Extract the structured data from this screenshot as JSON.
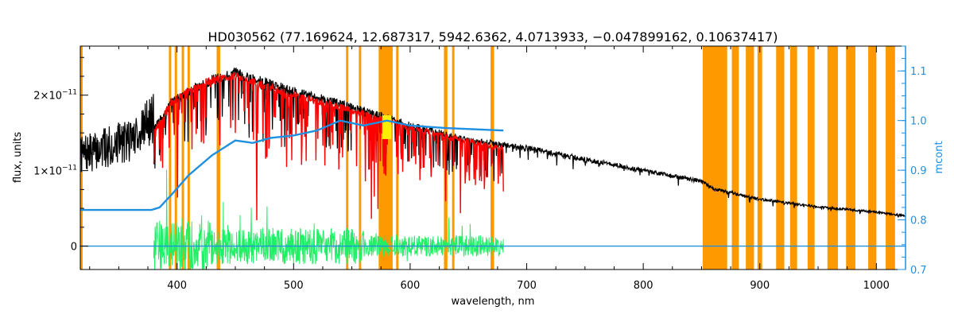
{
  "chart_data": {
    "type": "line",
    "title": "HD030562   (77.169624, 12.687317, 5942.6362, 4.0713933, −0.047899162, 0.10637417)",
    "xlabel": "wavelength, nm",
    "ylabel": "flux, units",
    "y2label": "mcont",
    "xlim": [
      317,
      1025
    ],
    "ylim": [
      -3.1e-12,
      2.65e-11
    ],
    "y2lim": [
      0.7,
      1.15
    ],
    "x_ticks": [
      400,
      500,
      600,
      700,
      800,
      900,
      1000
    ],
    "x_tick_labels": [
      "400",
      "500",
      "600",
      "700",
      "800",
      "900",
      "1000"
    ],
    "y_ticks": [
      0,
      1e-11,
      2e-11
    ],
    "y_tick_labels": [
      {
        "base": "0",
        "exp": ""
      },
      {
        "base": "1×10",
        "exp": "−11"
      },
      {
        "base": "2×10",
        "exp": "−11"
      }
    ],
    "y2_ticks": [
      0.7,
      0.8,
      0.9,
      1.0,
      1.1
    ],
    "y2_tick_labels": [
      "0.7",
      "0.8",
      "0.9",
      "1.0",
      "1.1"
    ],
    "colors": {
      "observed": "#000000",
      "model": "#ff0000",
      "residual": "#22ee66",
      "mcont": "#1f8fe0",
      "masked": "#ff9900",
      "highlight": "#ffee00"
    },
    "masked_regions": [
      [
        317,
        319
      ],
      [
        393,
        395
      ],
      [
        398,
        400
      ],
      [
        404,
        406
      ],
      [
        409,
        411
      ],
      [
        434,
        437
      ],
      [
        545,
        547
      ],
      [
        556,
        558
      ],
      [
        573,
        585
      ],
      [
        588,
        590
      ],
      [
        629,
        632
      ],
      [
        636,
        638
      ],
      [
        669,
        672
      ],
      [
        851,
        872
      ],
      [
        876,
        882
      ],
      [
        888,
        895
      ],
      [
        898,
        902
      ],
      [
        914,
        921
      ],
      [
        926,
        932
      ],
      [
        941,
        947
      ],
      [
        958,
        967
      ],
      [
        974,
        982
      ],
      [
        993,
        1000
      ],
      [
        1008,
        1016
      ]
    ],
    "series": [
      {
        "key": "observed",
        "x": [
          317,
          340,
          360,
          375,
          380,
          395,
          410,
          430,
          450,
          470,
          500,
          550,
          600,
          650,
          700,
          750,
          800,
          850,
          860,
          900,
          950,
          1000,
          1025
        ],
        "y": [
          1.1e-11,
          1.2e-11,
          1.3e-11,
          1.5e-11,
          1.55e-11,
          1.9e-11,
          2.05e-11,
          2.2e-11,
          2.3e-11,
          2.2e-11,
          2.05e-11,
          1.85e-11,
          1.6e-11,
          1.4e-11,
          1.3e-11,
          1.15e-11,
          1e-11,
          8.6e-12,
          7.6e-12,
          6.2e-12,
          5.2e-12,
          4.5e-12,
          4e-12
        ]
      },
      {
        "key": "model",
        "x": [
          380,
          395,
          410,
          430,
          450,
          470,
          500,
          550,
          600,
          630,
          680
        ],
        "y": [
          1.5e-11,
          1.9e-11,
          2.05e-11,
          2.2e-11,
          2.25e-11,
          2.15e-11,
          2e-11,
          1.8e-11,
          1.58e-11,
          1.45e-11,
          1.3e-11
        ]
      },
      {
        "key": "mcont",
        "axis": "right",
        "x": [
          317,
          378,
          385,
          395,
          410,
          430,
          450,
          465,
          480,
          500,
          520,
          540,
          560,
          580,
          600,
          630,
          680
        ],
        "y": [
          0.82,
          0.82,
          0.825,
          0.85,
          0.89,
          0.93,
          0.96,
          0.955,
          0.965,
          0.97,
          0.98,
          1.0,
          0.99,
          1.0,
          0.99,
          0.985,
          0.98
        ]
      },
      {
        "key": "residual",
        "x": [
          380,
          680
        ],
        "y": [
          0,
          0
        ]
      }
    ]
  }
}
